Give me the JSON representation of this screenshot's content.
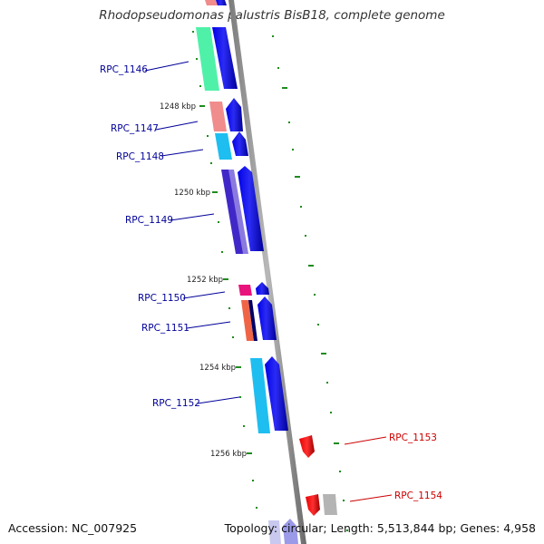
{
  "title": "Rhodopseudomonas palustris BisB18, complete genome",
  "footer": {
    "accession": "Accession: NC_007925",
    "stats": "Topology: circular; Length: 5,513,844 bp; Genes: 4,958"
  },
  "kbp_ticks": [
    "1248 kbp",
    "1250 kbp",
    "1252 kbp",
    "1254 kbp",
    "1256 kbp"
  ],
  "genes": [
    {
      "label": "RPC_1146",
      "color": "#000099",
      "cog_color": "#3CF0A0",
      "strand": "+"
    },
    {
      "label": "RPC_1147",
      "color": "#000099",
      "cog_color": "#F08C8C",
      "strand": "+"
    },
    {
      "label": "RPC_1148",
      "color": "#000099",
      "cog_color": "#1EBEF0",
      "strand": "+"
    },
    {
      "label": "RPC_1149",
      "color": "#000099",
      "cog_color": "#4028C8",
      "strand": "+"
    },
    {
      "label": "RPC_1150",
      "color": "#000099",
      "cog_color": "#E8147C",
      "strand": "+"
    },
    {
      "label": "RPC_1151",
      "color": "#000099",
      "cog_color": "#F06446",
      "strand": "+"
    },
    {
      "label": "RPC_1152",
      "color": "#000099",
      "cog_color": "#1EBEF0",
      "strand": "+"
    },
    {
      "label": "RPC_1153",
      "color": "#CC0000",
      "cog_color": "",
      "strand": "-"
    },
    {
      "label": "RPC_1154",
      "color": "#CC0000",
      "cog_color": "#B4B4B4",
      "strand": "-"
    }
  ],
  "colors": {
    "forward_gene": "#0000E6",
    "reverse_gene": "#E60000",
    "backbone": "#8C8C8C",
    "tick_green": "#1E8C1E"
  }
}
